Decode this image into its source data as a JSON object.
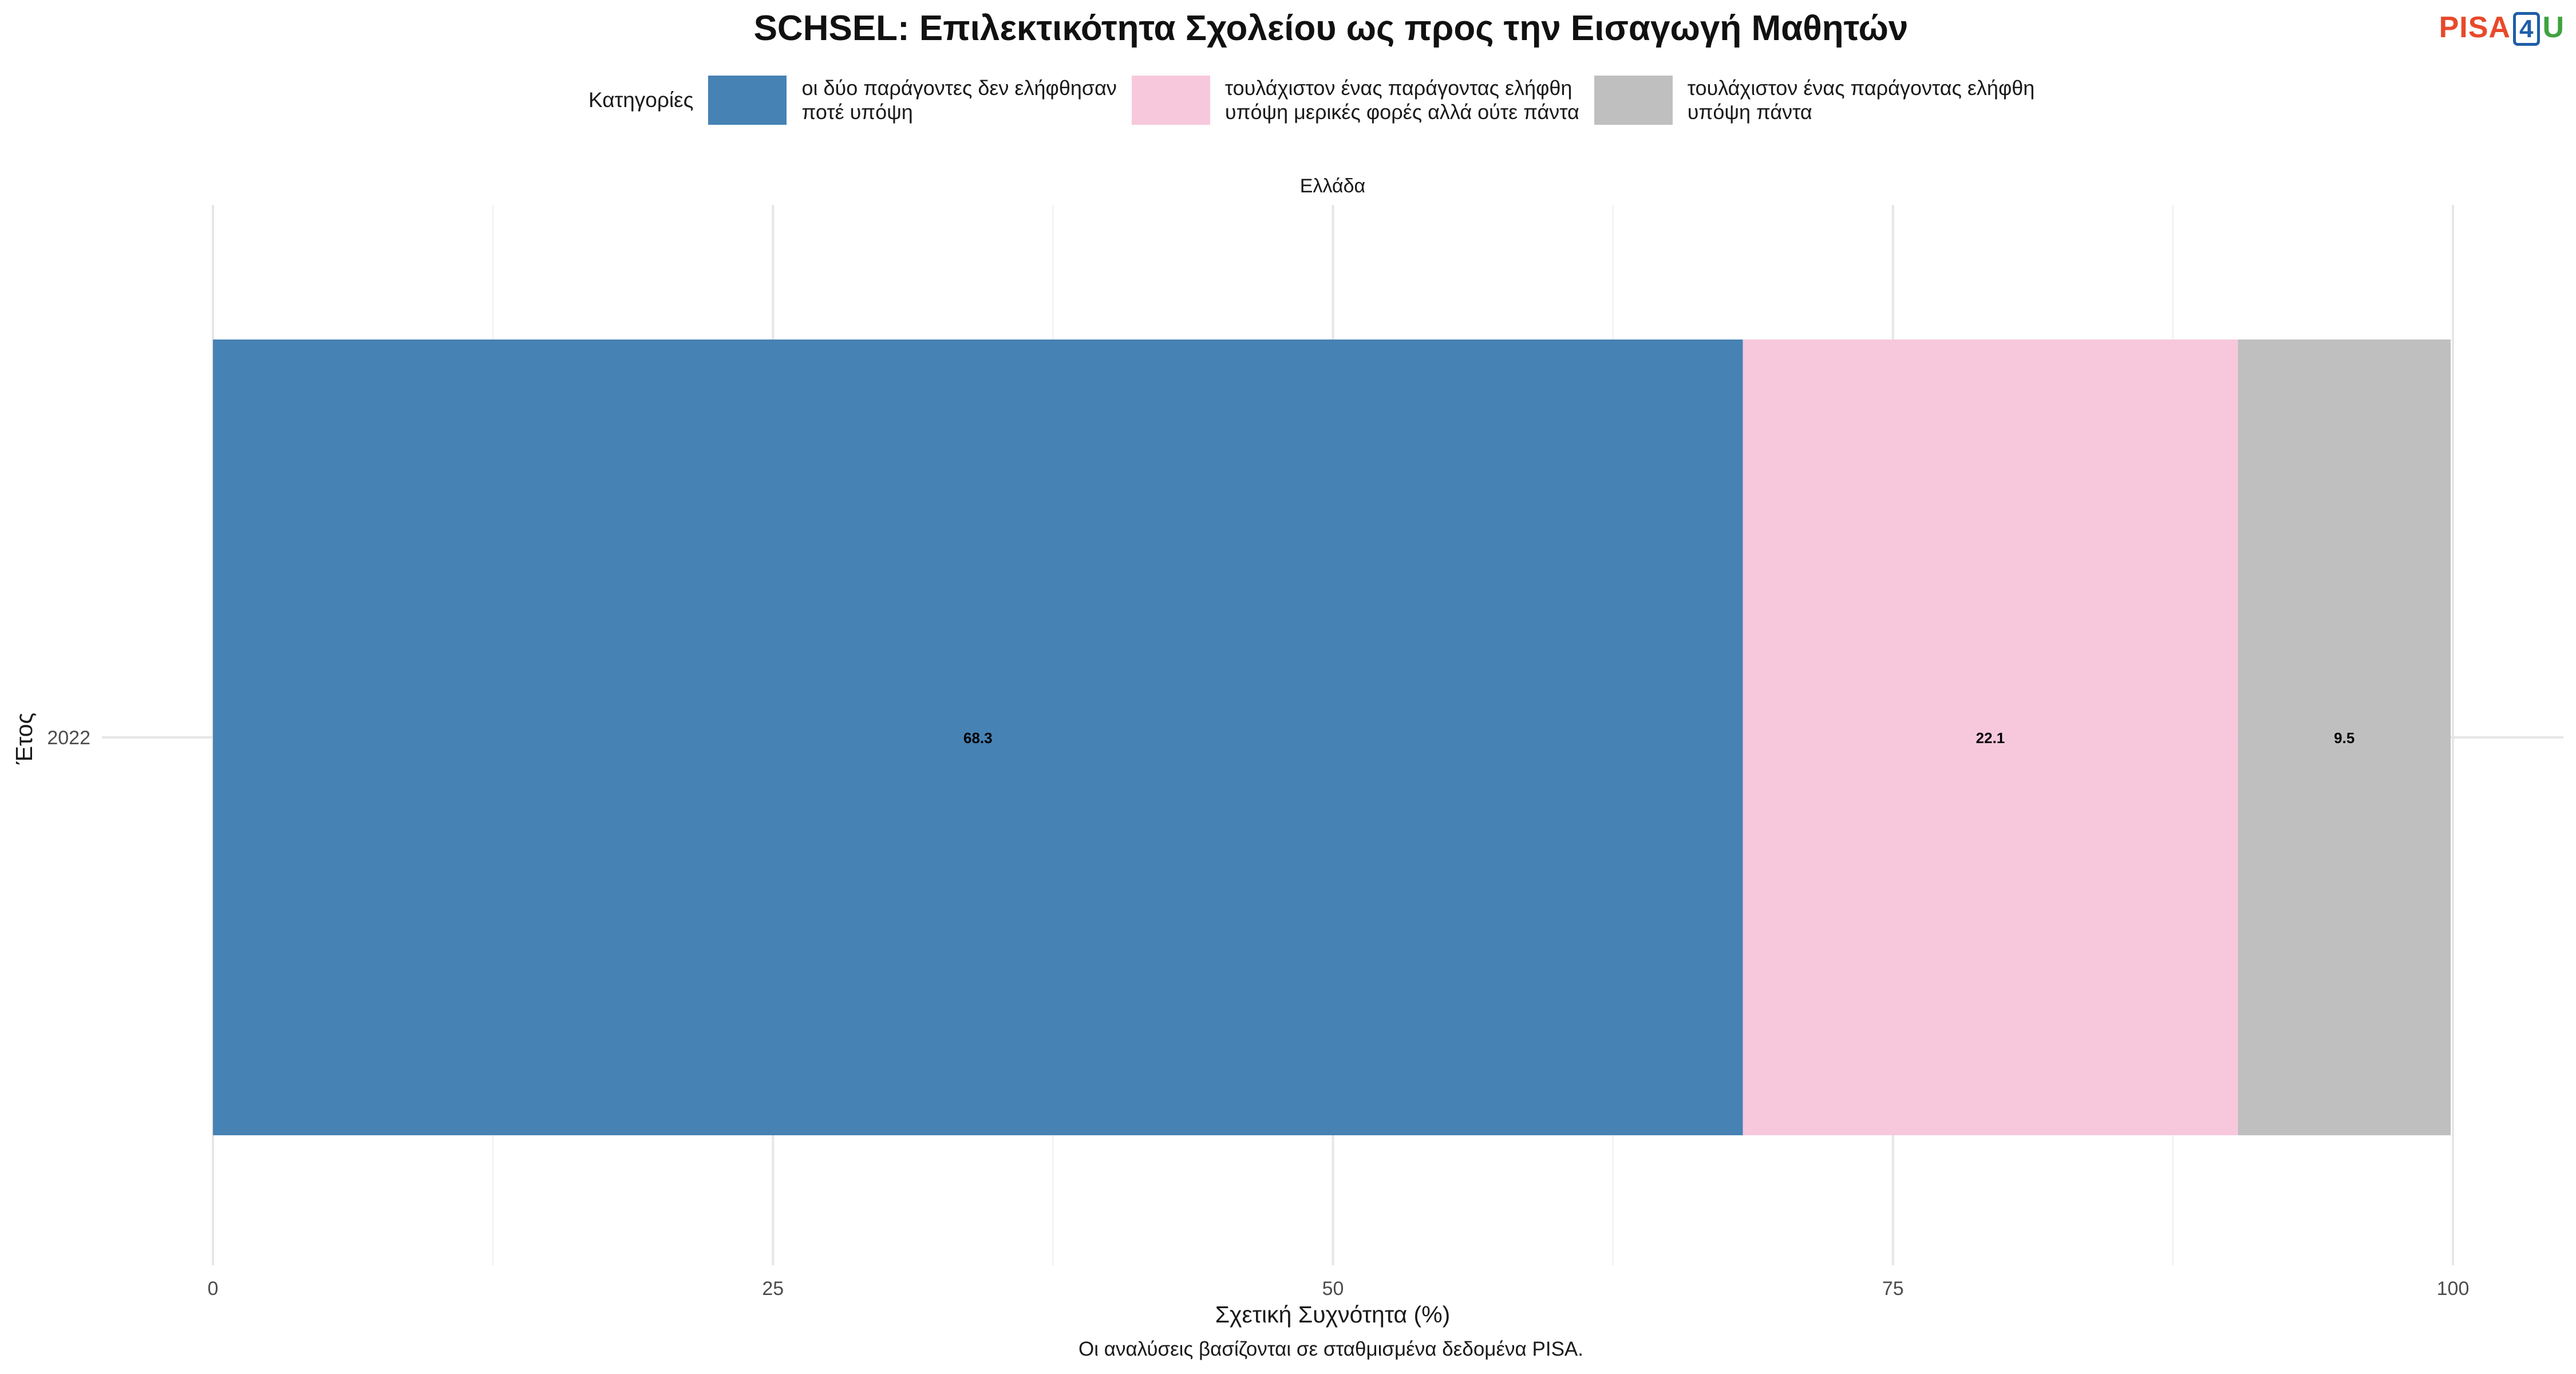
{
  "title": "SCHSEL: Επιλεκτικότητα Σχολείου ως προς την Εισαγωγή Μαθητών",
  "logo": {
    "part1": "PISA",
    "part2": "4",
    "part3": "U"
  },
  "legend": {
    "title": "Κατηγορίες",
    "items": [
      {
        "label": "οι δύο παράγοντες δεν ελήφθησαν\nποτέ υπόψη",
        "color": "#4682b4"
      },
      {
        "label": "τουλάχιστον ένας παράγοντας ελήφθη\nυπόψη μερικές φορές αλλά ούτε πάντα",
        "color": "#f7c8dc"
      },
      {
        "label": "τουλάχιστον ένας παράγοντας ελήφθη\nυπόψη πάντα",
        "color": "#bfbfbf"
      }
    ]
  },
  "caption": "Οι αναλύσεις βασίζονται σε σταθμισμένα δεδομένα PISA.",
  "chart_data": {
    "type": "bar",
    "orientation": "horizontal",
    "stacked": true,
    "facet": "Ελλάδα",
    "categories": [
      "2022"
    ],
    "series": [
      {
        "name": "οι δύο παράγοντες δεν ελήφθησαν ποτέ υπόψη",
        "values": [
          68.3
        ],
        "labels": [
          "68.3"
        ],
        "color": "#4682b4"
      },
      {
        "name": "τουλάχιστον ένας παράγοντας ελήφθη υπόψη μερικές φορές αλλά ούτε πάντα",
        "values": [
          22.1
        ],
        "labels": [
          "22.1"
        ],
        "color": "#f7c8dc"
      },
      {
        "name": "τουλάχιστον ένας παράγοντας ελήφθη υπόψη πάντα",
        "values": [
          9.5
        ],
        "labels": [
          "9.5"
        ],
        "color": "#bfbfbf"
      }
    ],
    "xlabel": "Σχετική Συχνότητα (%)",
    "ylabel": "Έτος",
    "xlim": [
      0,
      100
    ],
    "xticks": [
      0,
      25,
      50,
      75,
      100
    ],
    "grid": true,
    "legend_position": "top"
  }
}
